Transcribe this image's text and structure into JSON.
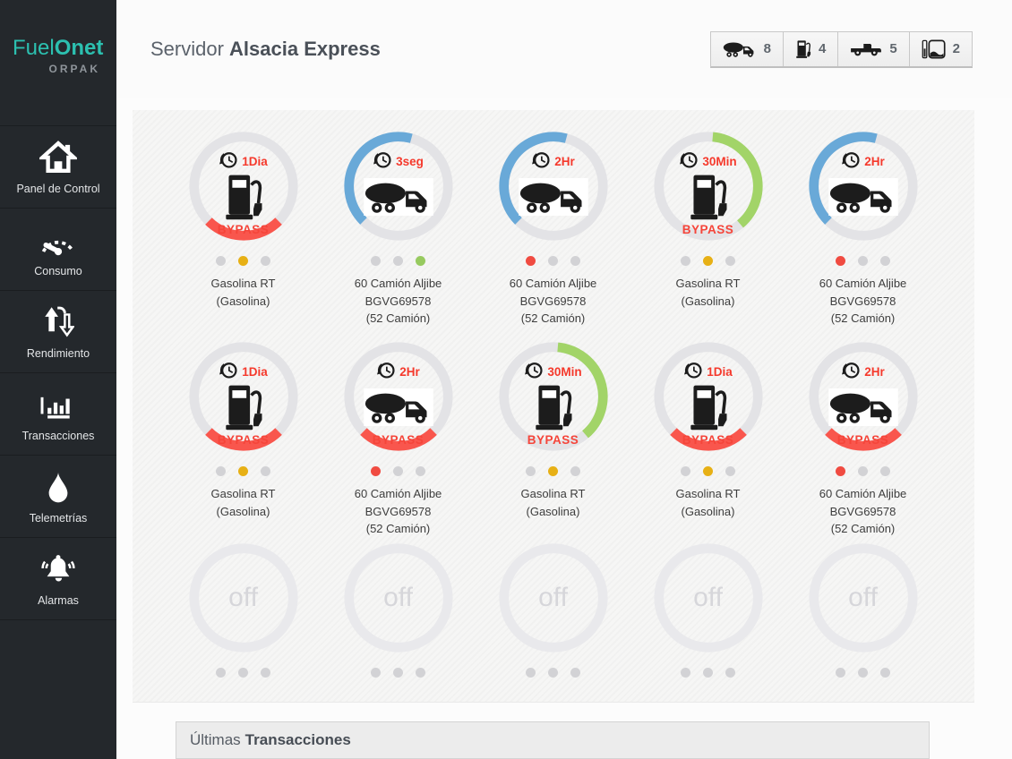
{
  "sidebar": {
    "logo": {
      "brand_light": "Fuel",
      "brand_bold": "Onet",
      "company": "ORPAK"
    },
    "items": [
      {
        "label": "Panel de Control",
        "icon": "home"
      },
      {
        "label": "Consumo",
        "icon": "gauge"
      },
      {
        "label": "Rendimiento",
        "icon": "arrows"
      },
      {
        "label": "Transacciones",
        "icon": "bars"
      },
      {
        "label": "Telemetrías",
        "icon": "drop"
      },
      {
        "label": "Alarmas",
        "icon": "bell"
      }
    ]
  },
  "header": {
    "title_prefix": "Servidor",
    "title_name": "Alsacia Express",
    "counters": [
      {
        "icon": "tanker-truck",
        "value": "8"
      },
      {
        "icon": "fuel-pump",
        "value": "4"
      },
      {
        "icon": "pickup-truck",
        "value": "5"
      },
      {
        "icon": "tank",
        "value": "2"
      }
    ]
  },
  "colors": {
    "accent_teal": "#2cc0b0",
    "arc_red": "#f9564d",
    "arc_blue": "#69a9d8",
    "arc_green": "#a2d468",
    "dot_amber": "#e7b015",
    "dot_green": "#97ca5f",
    "dot_red": "#f04b41",
    "timer_red": "#f5392c"
  },
  "gauges": [
    {
      "state": "on",
      "timer": "1Dia",
      "icon": "pump",
      "bypass": "BYPASS",
      "arc": {
        "color": "#f9564d",
        "start": 135,
        "end": 225
      },
      "dots": [
        "gray",
        "amber",
        "gray"
      ],
      "line1": "Gasolina RT",
      "line2": "(Gasolina)",
      "line3": ""
    },
    {
      "state": "on",
      "timer": "3seg",
      "icon": "truck",
      "bypass": "",
      "arc": {
        "color": "#69a9d8",
        "start": 225,
        "end": 375
      },
      "dots": [
        "gray",
        "gray",
        "green"
      ],
      "line1": "60 Camión Aljibe",
      "line2": "BGVG69578",
      "line3": "(52 Camión)"
    },
    {
      "state": "on",
      "timer": "2Hr",
      "icon": "truck",
      "bypass": "",
      "arc": {
        "color": "#69a9d8",
        "start": 225,
        "end": 375
      },
      "dots": [
        "red",
        "gray",
        "gray"
      ],
      "line1": "60 Camión Aljibe",
      "line2": "BGVG69578",
      "line3": "(52 Camión)"
    },
    {
      "state": "on",
      "timer": "30Min",
      "icon": "pump",
      "bypass": "BYPASS",
      "arc": {
        "color": "#a2d468",
        "start": 5,
        "end": 140
      },
      "dots": [
        "gray",
        "amber",
        "gray"
      ],
      "line1": "Gasolina RT",
      "line2": "(Gasolina)",
      "line3": ""
    },
    {
      "state": "on",
      "timer": "2Hr",
      "icon": "truck",
      "bypass": "",
      "arc": {
        "color": "#69a9d8",
        "start": 225,
        "end": 375
      },
      "dots": [
        "red",
        "gray",
        "gray"
      ],
      "line1": "60 Camión Aljibe",
      "line2": "BGVG69578",
      "line3": "(52 Camión)"
    },
    {
      "state": "on",
      "timer": "1Dia",
      "icon": "pump",
      "bypass": "BYPASS",
      "arc": {
        "color": "#f9564d",
        "start": 135,
        "end": 225
      },
      "dots": [
        "gray",
        "amber",
        "gray"
      ],
      "line1": "Gasolina RT",
      "line2": "(Gasolina)",
      "line3": ""
    },
    {
      "state": "on",
      "timer": "2Hr",
      "icon": "truck",
      "bypass": "BYPASS",
      "arc": {
        "color": "#f9564d",
        "start": 135,
        "end": 225
      },
      "dots": [
        "red",
        "gray",
        "gray"
      ],
      "line1": "60 Camión Aljibe",
      "line2": "BGVG69578",
      "line3": "(52 Camión)"
    },
    {
      "state": "on",
      "timer": "30Min",
      "icon": "pump",
      "bypass": "BYPASS",
      "arc": {
        "color": "#a2d468",
        "start": 5,
        "end": 140
      },
      "dots": [
        "gray",
        "amber",
        "gray"
      ],
      "line1": "Gasolina RT",
      "line2": "(Gasolina)",
      "line3": ""
    },
    {
      "state": "on",
      "timer": "1Dia",
      "icon": "pump",
      "bypass": "BYPASS",
      "arc": {
        "color": "#f9564d",
        "start": 135,
        "end": 225
      },
      "dots": [
        "gray",
        "amber",
        "gray"
      ],
      "line1": "Gasolina RT",
      "line2": "(Gasolina)",
      "line3": ""
    },
    {
      "state": "on",
      "timer": "2Hr",
      "icon": "truck",
      "bypass": "BYPASS",
      "arc": {
        "color": "#f9564d",
        "start": 135,
        "end": 225
      },
      "dots": [
        "red",
        "gray",
        "gray"
      ],
      "line1": "60 Camión Aljibe",
      "line2": "BGVG69578",
      "line3": "(52 Camión)"
    },
    {
      "state": "off",
      "off_label": "off",
      "timer": "",
      "icon": "",
      "bypass": "",
      "dots": [
        "gray",
        "gray",
        "gray"
      ],
      "line1": "",
      "line2": "",
      "line3": ""
    },
    {
      "state": "off",
      "off_label": "off",
      "timer": "",
      "icon": "",
      "bypass": "",
      "dots": [
        "gray",
        "gray",
        "gray"
      ],
      "line1": "",
      "line2": "",
      "line3": ""
    },
    {
      "state": "off",
      "off_label": "off",
      "timer": "",
      "icon": "",
      "bypass": "",
      "dots": [
        "gray",
        "gray",
        "gray"
      ],
      "line1": "",
      "line2": "",
      "line3": ""
    },
    {
      "state": "off",
      "off_label": "off",
      "timer": "",
      "icon": "",
      "bypass": "",
      "dots": [
        "gray",
        "gray",
        "gray"
      ],
      "line1": "",
      "line2": "",
      "line3": ""
    },
    {
      "state": "off",
      "off_label": "off",
      "timer": "",
      "icon": "",
      "bypass": "",
      "dots": [
        "gray",
        "gray",
        "gray"
      ],
      "line1": "",
      "line2": "",
      "line3": ""
    }
  ],
  "bottom": {
    "title_prefix": "Últimas",
    "title_bold": "Transacciones"
  }
}
